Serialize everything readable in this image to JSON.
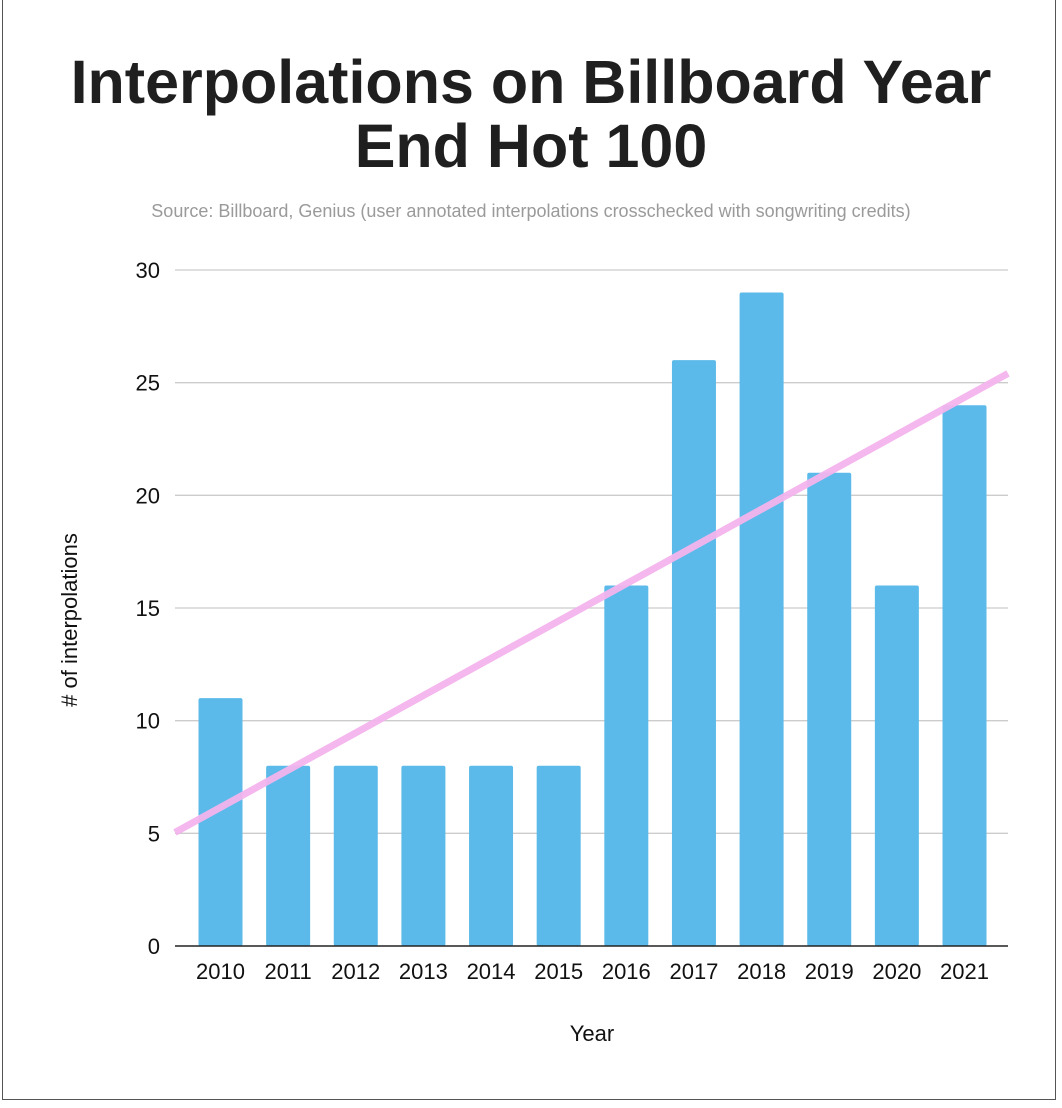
{
  "chart_data": {
    "type": "bar",
    "title": "Interpolations on Billboard Year End Hot 100",
    "subtitle": "Source: Billboard, Genius (user annotated interpolations crosschecked with songwriting credits)",
    "xlabel": "Year",
    "ylabel": "# of interpolations",
    "categories": [
      "2010",
      "2011",
      "2012",
      "2013",
      "2014",
      "2015",
      "2016",
      "2017",
      "2018",
      "2019",
      "2020",
      "2021"
    ],
    "values": [
      11,
      8,
      8,
      8,
      8,
      8,
      16,
      26,
      29,
      21,
      16,
      24
    ],
    "ylim": [
      0,
      30
    ],
    "yticks": [
      "0",
      "5",
      "10",
      "15",
      "20",
      "25",
      "30"
    ],
    "grid": true,
    "legend": "none",
    "trendline": {
      "type": "linear",
      "color": "#f4b4ee"
    },
    "colors": {
      "bar": "#5bbaea",
      "grid": "#cccccc",
      "axis": "#222222"
    }
  }
}
